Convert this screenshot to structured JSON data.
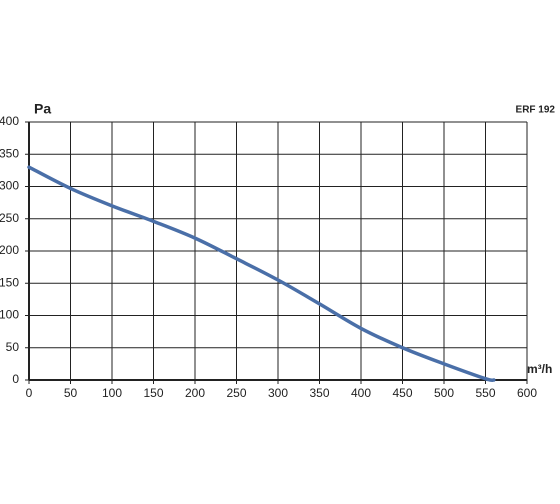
{
  "chart_data": {
    "type": "line",
    "title": "ERF 192",
    "y_label": "Pa",
    "x_label": "m³/h",
    "x": [
      0,
      50,
      100,
      150,
      200,
      250,
      300,
      350,
      400,
      450,
      500,
      550,
      560
    ],
    "series": [
      {
        "color": "#4a6fa8",
        "values": [
          330,
          297,
          270,
          246,
          220,
          188,
          155,
          118,
          80,
          50,
          25,
          2,
          0
        ]
      }
    ],
    "xlim": [
      0,
      600
    ],
    "xticks": [
      0,
      50,
      100,
      150,
      200,
      250,
      300,
      350,
      400,
      450,
      500,
      550,
      600
    ],
    "ylim": [
      0,
      400
    ],
    "yticks": [
      0,
      50,
      100,
      150,
      200,
      250,
      300,
      350,
      400
    ],
    "grid": true
  }
}
